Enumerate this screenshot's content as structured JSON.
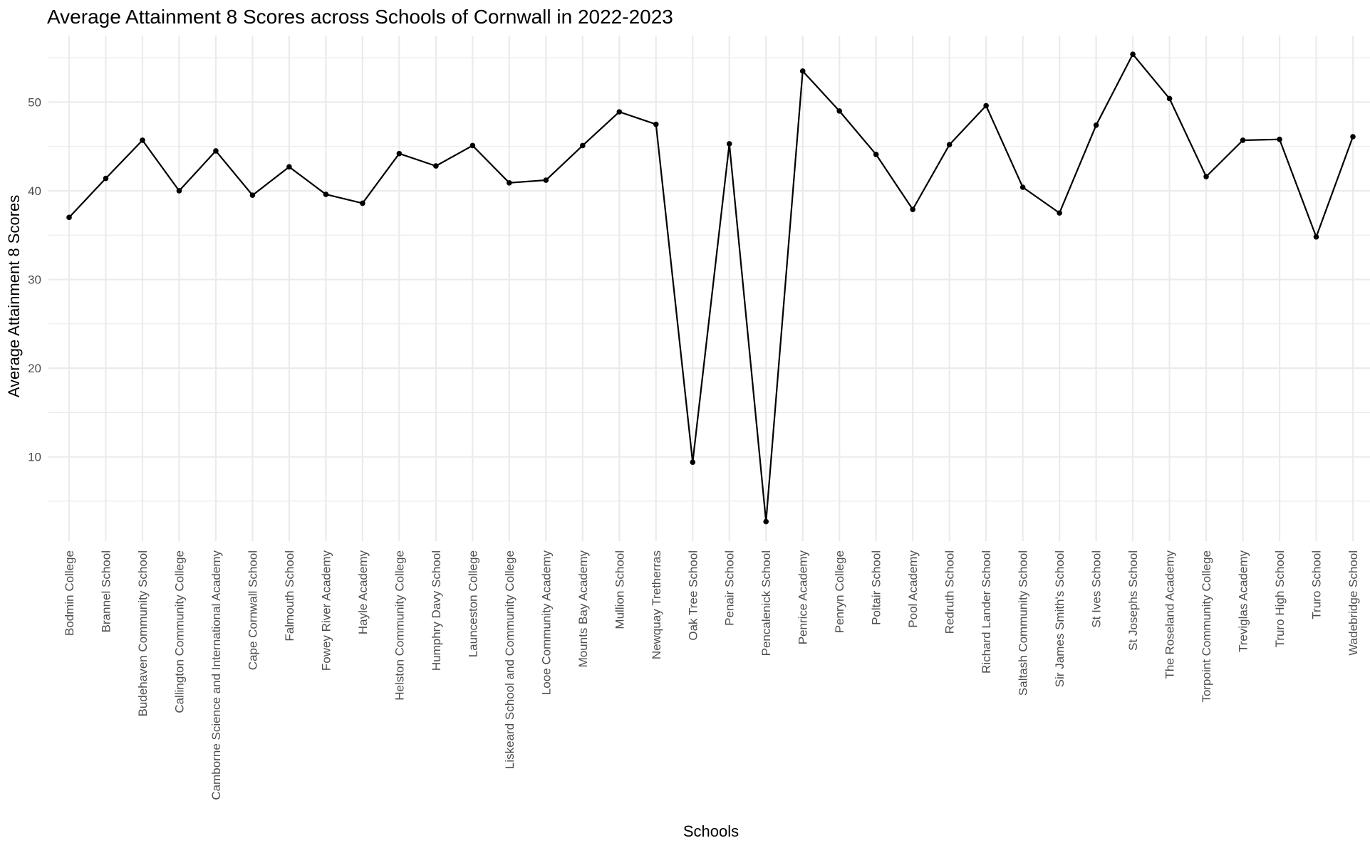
{
  "chart_data": {
    "type": "line",
    "title": "Average Attainment 8 Scores across Schools of Cornwall in 2022-2023",
    "xlabel": "Schools",
    "ylabel": "Average Attainment 8 Scores",
    "ylim": [
      0.5,
      57.5
    ],
    "yticks": [
      10,
      20,
      30,
      40,
      50
    ],
    "grid": true,
    "line_color": "#000000",
    "grid_color": "#ebebeb",
    "categories": [
      "Bodmin College",
      "Brannel School",
      "Budehaven Community School",
      "Callington Community College",
      "Camborne Science and International Academy",
      "Cape Cornwall School",
      "Falmouth School",
      "Fowey River Academy",
      "Hayle Academy",
      "Helston Community College",
      "Humphry Davy School",
      "Launceston College",
      "Liskeard School and Community College",
      "Looe Community Academy",
      "Mounts Bay Academy",
      "Mullion School",
      "Newquay Tretherras",
      "Oak Tree School",
      "Penair School",
      "Pencalenick School",
      "Penrice Academy",
      "Penryn College",
      "Poltair School",
      "Pool Academy",
      "Redruth School",
      "Richard Lander School",
      "Saltash Community School",
      "Sir James Smith's School",
      "St Ives School",
      "St Josephs School",
      "The Roseland Academy",
      "Torpoint Community College",
      "Treviglas Academy",
      "Truro High School",
      "Truro School",
      "Wadebridge School"
    ],
    "values": [
      37.0,
      41.4,
      45.7,
      40.0,
      44.5,
      39.5,
      42.7,
      39.6,
      38.6,
      44.2,
      42.8,
      45.1,
      40.9,
      41.2,
      45.1,
      48.9,
      47.5,
      9.4,
      45.3,
      2.7,
      53.5,
      49.0,
      44.1,
      37.9,
      45.2,
      49.6,
      40.4,
      37.5,
      47.4,
      55.4,
      50.4,
      41.6,
      45.7,
      45.8,
      34.8,
      46.1
    ]
  }
}
